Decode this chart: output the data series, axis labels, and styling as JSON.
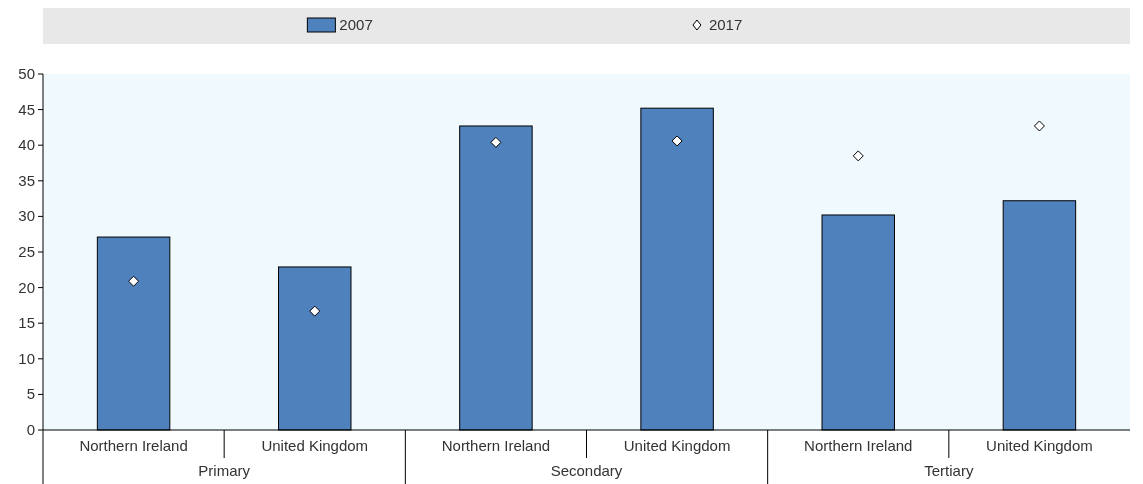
{
  "chart_data": {
    "type": "bar",
    "categories": [
      "Northern Ireland",
      "United Kingdom",
      "Northern Ireland",
      "United Kingdom",
      "Northern Ireland",
      "United Kingdom"
    ],
    "series": [
      {
        "name": "2007",
        "color": "#4f81bd",
        "values": [
          27.1,
          22.9,
          42.7,
          45.2,
          30.2,
          32.2
        ]
      },
      {
        "name": "2017",
        "type": "scatter",
        "color": "#ffffff",
        "marker": "diamond",
        "values": [
          20.9,
          16.7,
          40.4,
          40.6,
          38.5,
          42.7
        ]
      }
    ],
    "annotations": [
      "Primary",
      "Secondary",
      "Tertiary"
    ],
    "ylim": [
      0,
      50
    ],
    "yticks": [
      0,
      5,
      10,
      15,
      20,
      25,
      30,
      35,
      40,
      45,
      50
    ],
    "grid": false,
    "legend": "top"
  }
}
